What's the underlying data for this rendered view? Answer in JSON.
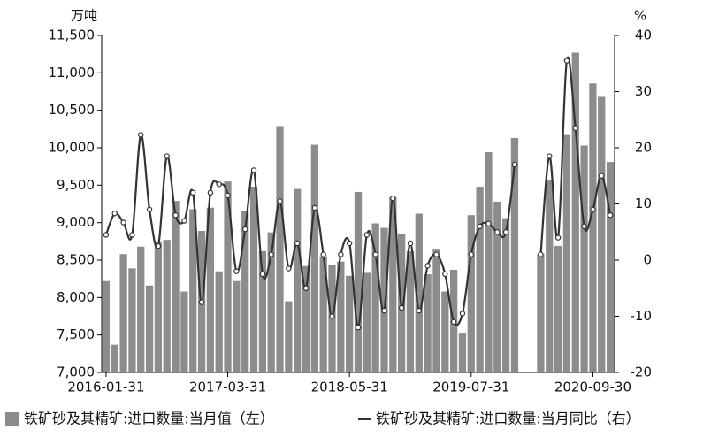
{
  "chart_data": {
    "type": "bar_line",
    "y_unit": "万吨",
    "y2_unit": "%",
    "categories": [
      "2016-01-31",
      null,
      null,
      null,
      null,
      null,
      null,
      null,
      null,
      null,
      null,
      null,
      null,
      null,
      "2017-03-31",
      null,
      null,
      null,
      null,
      null,
      null,
      null,
      null,
      null,
      null,
      null,
      null,
      null,
      "2018-05-31",
      null,
      null,
      null,
      null,
      null,
      null,
      null,
      null,
      null,
      null,
      null,
      null,
      null,
      "2019-07-31",
      null,
      null,
      null,
      null,
      null,
      null,
      null,
      null,
      null,
      null,
      null,
      null,
      null,
      "2020-09-30",
      null,
      null
    ],
    "series": [
      {
        "name": "铁矿砂及其精矿:进口数量:当月值（左）",
        "color": "#8c8c8c",
        "axis": "y",
        "values": [
          8220,
          7370,
          8580,
          8390,
          8680,
          8160,
          8750,
          8770,
          9290,
          8080,
          9180,
          8890,
          9200,
          8350,
          9550,
          8220,
          9150,
          9480,
          8620,
          8870,
          10290,
          7950,
          9450,
          8420,
          10040,
          8550,
          8440,
          8480,
          8290,
          9410,
          8330,
          8990,
          8930,
          9340,
          8850,
          8620,
          9120,
          8310,
          8640,
          8080,
          8370,
          7530,
          9100,
          9480,
          9940,
          9280,
          9060,
          10130,
          null,
          null,
          8580,
          9570,
          8690,
          10170,
          11270,
          10030,
          10860,
          10680,
          9810
        ]
      },
      {
        "name": "铁矿砂及其精矿:进口数量:当月同比（右）",
        "color": "#333333",
        "axis": "y2",
        "values": [
          4.5,
          8.3,
          6.7,
          4.5,
          22.3,
          9,
          2.5,
          18.5,
          8,
          7,
          12,
          -7.5,
          12,
          13.5,
          11.5,
          -2,
          5.5,
          16,
          -2.5,
          1,
          10.5,
          -1.5,
          3,
          -5,
          9.3,
          1,
          -10,
          1,
          3,
          -12,
          4.5,
          1,
          -9,
          11,
          -8.5,
          3,
          -9,
          -1,
          1,
          -2.5,
          -11,
          -9.5,
          1,
          6,
          6.5,
          5,
          5,
          17,
          null,
          null,
          1,
          18.5,
          4,
          35.5,
          23.5,
          6,
          9,
          15,
          8
        ]
      }
    ],
    "ylim": [
      7000,
      11500
    ],
    "yticks": [
      {
        "value": 7000,
        "label": "7,000"
      },
      {
        "value": 7500,
        "label": "7,500"
      },
      {
        "value": 8000,
        "label": "8,000"
      },
      {
        "value": 8500,
        "label": "8,500"
      },
      {
        "value": 9000,
        "label": "9,000"
      },
      {
        "value": 9500,
        "label": "9,500"
      },
      {
        "value": 10000,
        "label": "10,000"
      },
      {
        "value": 10500,
        "label": "10,500"
      },
      {
        "value": 11000,
        "label": "11,000"
      },
      {
        "value": 11500,
        "label": "11,500"
      }
    ],
    "y2lim": [
      -20,
      40
    ],
    "y2ticks": [
      -20,
      -10,
      0,
      10,
      20,
      30,
      40
    ]
  }
}
